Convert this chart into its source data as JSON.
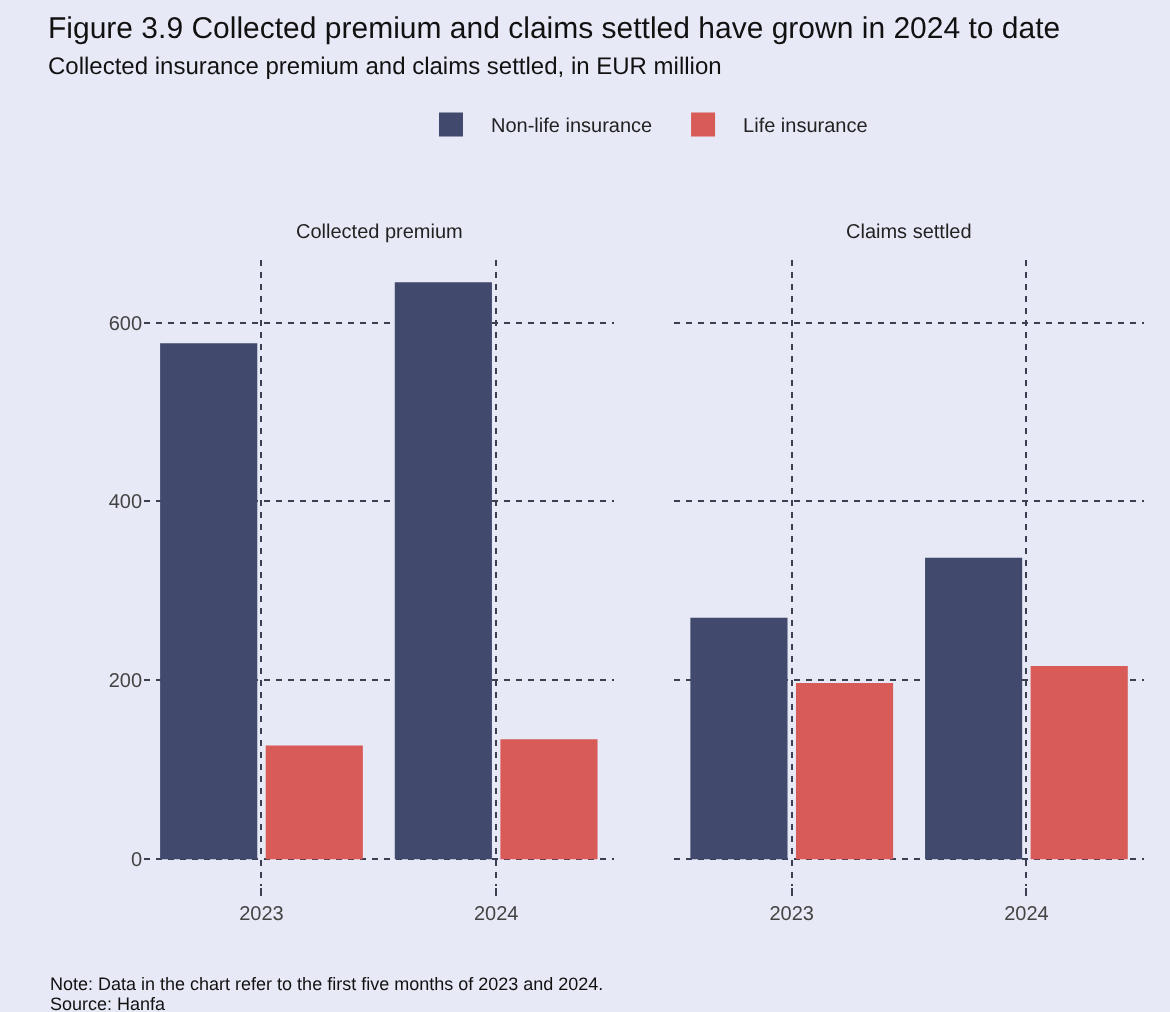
{
  "chart_data": [
    {
      "type": "bar",
      "title": "Figure 3.9 Collected premium and claims settled have grown in 2024 to date",
      "subtitle": "Collected insurance premium and claims settled, in EUR million",
      "categories": [
        "2023",
        "2024"
      ],
      "series": [
        {
          "name": "Non-life insurance",
          "color": "#414a6d",
          "values": [
            577,
            645
          ]
        },
        {
          "name": "Life insurance",
          "color": "#d95b58",
          "values": [
            127,
            134
          ]
        }
      ],
      "ylim": [
        -30,
        670
      ],
      "yticks": [
        0,
        200,
        400,
        600
      ],
      "grid": true,
      "legend": "top",
      "annotations": [
        "Collected premium",
        "Note: Data in the chart refer to the first five months of 2023 and 2024.",
        "Source: Hanfa"
      ]
    },
    {
      "type": "bar",
      "categories": [
        "2023",
        "2024"
      ],
      "series": [
        {
          "name": "Non-life insurance",
          "color": "#414a6d",
          "values": [
            270,
            337
          ]
        },
        {
          "name": "Life insurance",
          "color": "#d95b58",
          "values": [
            197,
            216
          ]
        }
      ],
      "ylim": [
        -30,
        670
      ],
      "yticks": [
        0,
        200,
        400,
        600
      ],
      "grid": true,
      "tick_labels": "x",
      "annotations": [
        "Claims settled"
      ]
    }
  ]
}
